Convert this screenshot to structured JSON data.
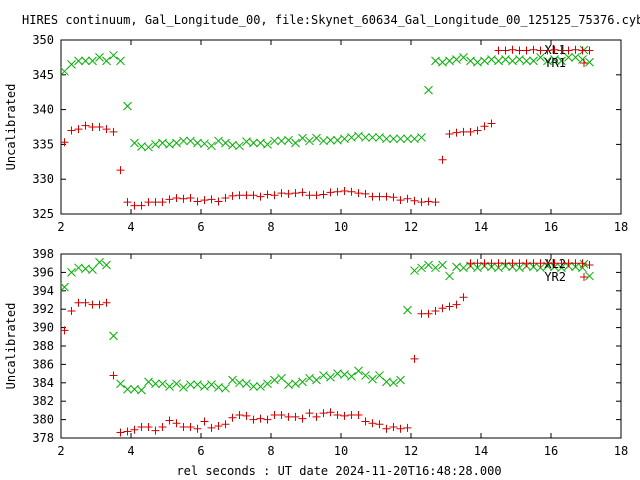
{
  "title": "HIRES continuum, Gal_Longitude_00, file:Skynet_60634_Gal_Longitude_00_125125_75376.cyb.txt",
  "xlabel": "rel seconds : UT date 2024-11-20T16:48:28.000",
  "colors": {
    "red": "#d40000",
    "green": "#00b000"
  },
  "chart_data": [
    {
      "type": "scatter",
      "ylabel": "Uncalibrated",
      "xlim": [
        2,
        18
      ],
      "ylim": [
        325,
        350
      ],
      "xticks": [
        2,
        4,
        6,
        8,
        10,
        12,
        14,
        16,
        18
      ],
      "yticks": [
        325,
        330,
        335,
        340,
        345,
        350
      ],
      "legend_position": "top-right",
      "series": [
        {
          "name": "XL1",
          "marker": "x",
          "color": "#00b000",
          "x": [
            2.1,
            2.3,
            2.5,
            2.7,
            2.9,
            3.1,
            3.3,
            3.5,
            3.7,
            3.9,
            4.1,
            4.3,
            4.5,
            4.7,
            4.9,
            5.1,
            5.3,
            5.5,
            5.7,
            5.9,
            6.1,
            6.3,
            6.5,
            6.7,
            6.9,
            7.1,
            7.3,
            7.5,
            7.7,
            7.9,
            8.1,
            8.3,
            8.5,
            8.7,
            8.9,
            9.1,
            9.3,
            9.5,
            9.7,
            9.9,
            10.1,
            10.3,
            10.5,
            10.7,
            10.9,
            11.1,
            11.3,
            11.5,
            11.7,
            11.9,
            12.1,
            12.3,
            12.5,
            12.7,
            12.9,
            13.1,
            13.3,
            13.5,
            13.7,
            13.9,
            14.1,
            14.3,
            14.5,
            14.7,
            14.9,
            15.1,
            15.3,
            15.5,
            15.7,
            15.9,
            16.1,
            16.3,
            16.5,
            16.7,
            16.9,
            17.1
          ],
          "y": [
            345.5,
            346.5,
            347.0,
            347.0,
            347.0,
            347.5,
            347.0,
            347.8,
            347.0,
            340.5,
            335.2,
            334.7,
            334.6,
            335.0,
            335.2,
            335.0,
            335.2,
            335.5,
            335.5,
            335.2,
            335.1,
            334.8,
            335.5,
            335.2,
            334.9,
            334.8,
            335.4,
            335.2,
            335.2,
            335.0,
            335.5,
            335.5,
            335.6,
            335.2,
            335.9,
            335.5,
            335.9,
            335.5,
            335.6,
            335.6,
            335.8,
            336.0,
            336.2,
            336.0,
            336.0,
            336.0,
            335.8,
            335.8,
            335.8,
            335.8,
            335.8,
            336.0,
            342.8,
            347.0,
            346.8,
            347.0,
            347.2,
            347.5,
            347.0,
            346.8,
            347.0,
            347.2,
            347.0,
            347.2,
            347.0,
            347.2,
            347.0,
            347.0,
            347.5,
            347.0,
            347.2,
            347.0,
            347.5,
            347.5,
            347.2,
            346.8
          ]
        },
        {
          "name": "YR1",
          "marker": "+",
          "color": "#d40000",
          "x": [
            2.1,
            2.3,
            2.5,
            2.7,
            2.9,
            3.1,
            3.3,
            3.5,
            3.7,
            3.9,
            4.1,
            4.3,
            4.5,
            4.7,
            4.9,
            5.1,
            5.3,
            5.5,
            5.7,
            5.9,
            6.1,
            6.3,
            6.5,
            6.7,
            6.9,
            7.1,
            7.3,
            7.5,
            7.7,
            7.9,
            8.1,
            8.3,
            8.5,
            8.7,
            8.9,
            9.1,
            9.3,
            9.5,
            9.7,
            9.9,
            10.1,
            10.3,
            10.5,
            10.7,
            10.9,
            11.1,
            11.3,
            11.5,
            11.7,
            11.9,
            12.1,
            12.3,
            12.5,
            12.7,
            12.9,
            13.1,
            13.3,
            13.5,
            13.7,
            13.9,
            14.1,
            14.3,
            14.5,
            14.7,
            14.9,
            15.1,
            15.3,
            15.5,
            15.7,
            15.9,
            16.1,
            16.3,
            16.5,
            16.7,
            16.9,
            17.1
          ],
          "y": [
            335.3,
            337.0,
            337.2,
            337.7,
            337.5,
            337.5,
            337.2,
            336.8,
            331.3,
            326.7,
            326.2,
            326.2,
            326.7,
            326.7,
            326.7,
            327.1,
            327.3,
            327.2,
            327.3,
            326.8,
            327.0,
            327.1,
            326.8,
            327.3,
            327.6,
            327.7,
            327.7,
            327.7,
            327.5,
            327.8,
            327.7,
            328.0,
            327.9,
            328.0,
            328.1,
            327.7,
            327.7,
            327.8,
            328.1,
            328.2,
            328.3,
            328.2,
            328.0,
            327.9,
            327.5,
            327.5,
            327.5,
            327.4,
            327.0,
            327.2,
            326.9,
            326.7,
            326.8,
            326.7,
            332.8,
            336.5,
            336.7,
            336.8,
            336.8,
            337.0,
            337.6,
            338.0,
            348.5,
            348.5,
            348.6,
            348.5,
            348.5,
            348.6,
            348.5,
            348.5,
            348.6,
            348.5,
            348.5,
            348.6,
            348.5,
            348.5
          ]
        }
      ]
    },
    {
      "type": "scatter",
      "ylabel": "Uncalibrated",
      "xlim": [
        2,
        18
      ],
      "ylim": [
        378,
        398
      ],
      "xticks": [
        2,
        4,
        6,
        8,
        10,
        12,
        14,
        16,
        18
      ],
      "yticks": [
        378,
        380,
        382,
        384,
        386,
        388,
        390,
        392,
        394,
        396,
        398
      ],
      "legend_position": "top-right",
      "series": [
        {
          "name": "XL2",
          "marker": "x",
          "color": "#00b000",
          "x": [
            2.1,
            2.3,
            2.5,
            2.7,
            2.9,
            3.1,
            3.3,
            3.5,
            3.7,
            3.9,
            4.1,
            4.3,
            4.5,
            4.7,
            4.9,
            5.1,
            5.3,
            5.5,
            5.7,
            5.9,
            6.1,
            6.3,
            6.5,
            6.7,
            6.9,
            7.1,
            7.3,
            7.5,
            7.7,
            7.9,
            8.1,
            8.3,
            8.5,
            8.7,
            8.9,
            9.1,
            9.3,
            9.5,
            9.7,
            9.9,
            10.1,
            10.3,
            10.5,
            10.7,
            10.9,
            11.1,
            11.3,
            11.5,
            11.7,
            11.9,
            12.1,
            12.3,
            12.5,
            12.7,
            12.9,
            13.1,
            13.3,
            13.5,
            13.7,
            13.9,
            14.1,
            14.3,
            14.5,
            14.7,
            14.9,
            15.1,
            15.3,
            15.5,
            15.7,
            15.9,
            16.1,
            16.3,
            16.5,
            16.7,
            16.9,
            17.1
          ],
          "y": [
            394.4,
            396.0,
            396.5,
            396.4,
            396.3,
            397.1,
            396.8,
            389.1,
            383.9,
            383.3,
            383.3,
            383.2,
            384.1,
            383.9,
            383.9,
            383.6,
            383.9,
            383.5,
            383.8,
            383.8,
            383.6,
            383.8,
            383.5,
            383.4,
            384.3,
            384.0,
            383.9,
            383.6,
            383.6,
            383.9,
            384.3,
            384.5,
            383.8,
            383.9,
            384.1,
            384.5,
            384.3,
            384.8,
            384.6,
            385.0,
            384.9,
            384.7,
            385.3,
            384.8,
            384.4,
            384.8,
            384.1,
            384.0,
            384.3,
            391.9,
            396.2,
            396.5,
            396.8,
            396.5,
            396.8,
            395.6,
            396.6,
            396.5,
            396.7,
            396.5,
            396.7,
            396.6,
            396.5,
            396.7,
            396.6,
            396.5,
            396.7,
            396.6,
            396.5,
            396.7,
            396.6,
            396.5,
            396.7,
            396.6,
            396.5,
            395.6
          ]
        },
        {
          "name": "YR2",
          "marker": "+",
          "color": "#d40000",
          "x": [
            2.1,
            2.3,
            2.5,
            2.7,
            2.9,
            3.1,
            3.3,
            3.5,
            3.7,
            3.9,
            4.1,
            4.3,
            4.5,
            4.7,
            4.9,
            5.1,
            5.3,
            5.5,
            5.7,
            5.9,
            6.1,
            6.3,
            6.5,
            6.7,
            6.9,
            7.1,
            7.3,
            7.5,
            7.7,
            7.9,
            8.1,
            8.3,
            8.5,
            8.7,
            8.9,
            9.1,
            9.3,
            9.5,
            9.7,
            9.9,
            10.1,
            10.3,
            10.5,
            10.7,
            10.9,
            11.1,
            11.3,
            11.5,
            11.7,
            11.9,
            12.1,
            12.3,
            12.5,
            12.7,
            12.9,
            13.1,
            13.3,
            13.5,
            13.7,
            13.9,
            14.1,
            14.3,
            14.5,
            14.7,
            14.9,
            15.1,
            15.3,
            15.5,
            15.7,
            15.9,
            16.1,
            16.3,
            16.5,
            16.7,
            16.9,
            17.1
          ],
          "y": [
            389.7,
            391.8,
            392.7,
            392.7,
            392.5,
            392.5,
            392.7,
            384.8,
            378.6,
            378.7,
            378.9,
            379.2,
            379.2,
            378.8,
            379.2,
            379.9,
            379.6,
            379.2,
            379.2,
            379.0,
            379.8,
            379.1,
            379.3,
            379.5,
            380.2,
            380.5,
            380.4,
            380.0,
            380.1,
            380.0,
            380.5,
            380.5,
            380.3,
            380.3,
            380.1,
            380.7,
            380.3,
            380.7,
            380.8,
            380.5,
            380.4,
            380.5,
            380.5,
            379.8,
            379.6,
            379.5,
            379.0,
            379.2,
            379.0,
            379.1,
            386.6,
            391.5,
            391.5,
            391.8,
            392.1,
            392.3,
            392.5,
            393.3,
            397.0,
            397.0,
            397.0,
            397.0,
            397.0,
            397.0,
            397.0,
            397.0,
            397.0,
            397.0,
            397.0,
            397.0,
            397.0,
            397.0,
            397.0,
            397.0,
            397.0,
            396.8
          ]
        }
      ]
    }
  ]
}
